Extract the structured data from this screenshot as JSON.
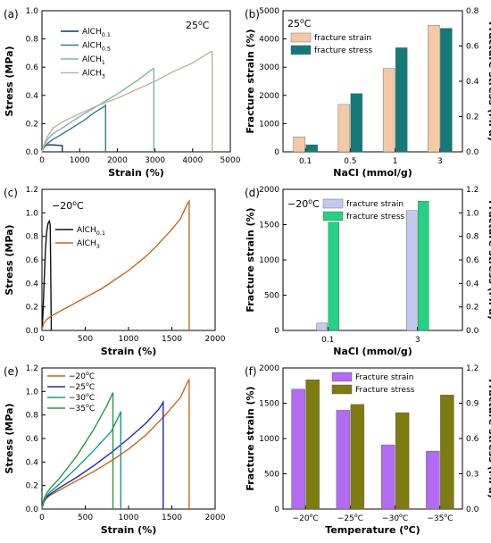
{
  "chart_data": [
    {
      "id": "a",
      "type": "line",
      "panel_label": "(a)",
      "annotation": "25°C",
      "xlabel": "Strain (%)",
      "ylabel": "Stress (MPa)",
      "xlim": [
        0,
        5000
      ],
      "ylim": [
        0,
        1.0
      ],
      "xticks": [
        "0",
        "1000",
        "2000",
        "3000",
        "4000",
        "5000"
      ],
      "yticks": [
        "0.0",
        "0.2",
        "0.4",
        "0.6",
        "0.8",
        "1.0"
      ],
      "legend_position": "top-left",
      "series": [
        {
          "name": "AlCH",
          "sub": "0.1",
          "color": "#16365c",
          "points": [
            [
              0,
              0
            ],
            [
              30,
              0.025
            ],
            [
              100,
              0.045
            ],
            [
              200,
              0.05
            ],
            [
              350,
              0.048
            ],
            [
              500,
              0.045
            ],
            [
              540,
              0.044
            ],
            [
              540,
              0
            ]
          ]
        },
        {
          "name": "AlCH",
          "sub": "0.5",
          "color": "#2e7d8f",
          "points": [
            [
              0,
              0
            ],
            [
              50,
              0.03
            ],
            [
              150,
              0.06
            ],
            [
              300,
              0.09
            ],
            [
              500,
              0.12
            ],
            [
              800,
              0.17
            ],
            [
              1100,
              0.22
            ],
            [
              1400,
              0.28
            ],
            [
              1650,
              0.32
            ],
            [
              1690,
              0.33
            ],
            [
              1690,
              0
            ]
          ]
        },
        {
          "name": "AlCH",
          "sub": "1",
          "color": "#7fb9a0",
          "points": [
            [
              0,
              0
            ],
            [
              50,
              0.04
            ],
            [
              150,
              0.09
            ],
            [
              300,
              0.13
            ],
            [
              600,
              0.18
            ],
            [
              1000,
              0.25
            ],
            [
              1500,
              0.33
            ],
            [
              2000,
              0.41
            ],
            [
              2500,
              0.5
            ],
            [
              2950,
              0.59
            ],
            [
              2970,
              0.59
            ],
            [
              2970,
              0
            ]
          ]
        },
        {
          "name": "AlCH",
          "sub": "3",
          "color": "#c9b097",
          "points": [
            [
              0,
              0
            ],
            [
              50,
              0.05
            ],
            [
              150,
              0.11
            ],
            [
              300,
              0.17
            ],
            [
              600,
              0.22
            ],
            [
              1000,
              0.27
            ],
            [
              1500,
              0.33
            ],
            [
              2000,
              0.38
            ],
            [
              2500,
              0.44
            ],
            [
              3000,
              0.5
            ],
            [
              3500,
              0.57
            ],
            [
              4000,
              0.63
            ],
            [
              4480,
              0.71
            ],
            [
              4520,
              0.71
            ],
            [
              4520,
              0
            ]
          ]
        }
      ]
    },
    {
      "id": "b",
      "type": "bar",
      "panel_label": "(b)",
      "annotation": "25°C",
      "xlabel": "NaCl (mmol/g)",
      "ylabel": "Fracture strain (%)",
      "ylabel_right": "Fracture stress (MPa)",
      "categories": [
        "0.1",
        "0.5",
        "1",
        "3"
      ],
      "ylim": [
        0,
        5000
      ],
      "ylim_right": [
        0,
        0.8
      ],
      "yticks": [
        "0",
        "1000",
        "2000",
        "3000",
        "4000",
        "5000"
      ],
      "yticks_right": [
        "0.0",
        "0.2",
        "0.4",
        "0.6",
        "0.8"
      ],
      "legend_position": "top-left",
      "series": [
        {
          "name": "fracture strain",
          "axis": "left",
          "color": "#f5c9a6",
          "values": [
            530,
            1680,
            2950,
            4480
          ]
        },
        {
          "name": "fracture stress",
          "axis": "right",
          "color": "#127a77",
          "values": [
            0.04,
            0.33,
            0.59,
            0.7
          ]
        }
      ]
    },
    {
      "id": "c",
      "type": "line",
      "panel_label": "(c)",
      "annotation": "−20°C",
      "xlabel": "Strain (%)",
      "ylabel": "Stress (MPa)",
      "xlim": [
        0,
        2000
      ],
      "ylim": [
        0,
        1.2
      ],
      "xticks": [
        "0",
        "500",
        "1000",
        "1500",
        "2000"
      ],
      "yticks": [
        "0.0",
        "0.2",
        "0.4",
        "0.6",
        "0.8",
        "1.0",
        "1.2"
      ],
      "legend_position": "top-left",
      "series": [
        {
          "name": "AlCH",
          "sub": "0.1",
          "color": "#111111",
          "points": [
            [
              0,
              0
            ],
            [
              10,
              0.12
            ],
            [
              20,
              0.3
            ],
            [
              30,
              0.5
            ],
            [
              40,
              0.68
            ],
            [
              55,
              0.84
            ],
            [
              70,
              0.91
            ],
            [
              85,
              0.93
            ],
            [
              95,
              0.9
            ],
            [
              100,
              0.6
            ],
            [
              105,
              0.2
            ],
            [
              108,
              0
            ]
          ]
        },
        {
          "name": "AlCH",
          "sub": "3",
          "color": "#c46a1e",
          "points": [
            [
              0,
              0
            ],
            [
              20,
              0.06
            ],
            [
              50,
              0.09
            ],
            [
              100,
              0.12
            ],
            [
              200,
              0.16
            ],
            [
              300,
              0.2
            ],
            [
              400,
              0.24
            ],
            [
              500,
              0.28
            ],
            [
              600,
              0.32
            ],
            [
              700,
              0.36
            ],
            [
              800,
              0.41
            ],
            [
              900,
              0.46
            ],
            [
              1000,
              0.51
            ],
            [
              1100,
              0.57
            ],
            [
              1200,
              0.63
            ],
            [
              1300,
              0.7
            ],
            [
              1400,
              0.78
            ],
            [
              1500,
              0.86
            ],
            [
              1600,
              0.95
            ],
            [
              1680,
              1.08
            ],
            [
              1700,
              1.1
            ],
            [
              1700,
              0
            ]
          ]
        }
      ]
    },
    {
      "id": "d",
      "type": "bar",
      "panel_label": "(d)",
      "annotation": "−20°C",
      "xlabel": "NaCl (mmol/g)",
      "ylabel": "Fracture strain (%)",
      "ylabel_right": "Fracture stress (MPa)",
      "categories": [
        "0.1",
        "3"
      ],
      "ylim": [
        0,
        2000
      ],
      "ylim_right": [
        0,
        1.2
      ],
      "yticks": [
        "0",
        "500",
        "1000",
        "1500",
        "2000"
      ],
      "yticks_right": [
        "0.0",
        "0.2",
        "0.4",
        "0.6",
        "0.8",
        "1.0",
        "1.2"
      ],
      "legend_position": "top-left",
      "series": [
        {
          "name": "fracture strain",
          "axis": "left",
          "color": "#c5c8ef",
          "values": [
            105,
            1700
          ]
        },
        {
          "name": "fracture stress",
          "axis": "right",
          "color": "#23d283",
          "values": [
            0.92,
            1.1
          ]
        }
      ]
    },
    {
      "id": "e",
      "type": "line",
      "panel_label": "(e)",
      "annotation": "",
      "xlabel": "Strain (%)",
      "ylabel": "Stress (MPa)",
      "xlim": [
        0,
        2000
      ],
      "ylim": [
        0,
        1.2
      ],
      "xticks": [
        "0",
        "500",
        "1000",
        "1500",
        "2000"
      ],
      "yticks": [
        "0.0",
        "0.2",
        "0.4",
        "0.6",
        "0.8",
        "1.0",
        "1.2"
      ],
      "legend_position": "top-left",
      "series": [
        {
          "name": "−20°C",
          "color": "#c46a1e",
          "points": [
            [
              0,
              0
            ],
            [
              20,
              0.06
            ],
            [
              50,
              0.09
            ],
            [
              100,
              0.12
            ],
            [
              200,
              0.16
            ],
            [
              400,
              0.24
            ],
            [
              600,
              0.32
            ],
            [
              800,
              0.41
            ],
            [
              1000,
              0.51
            ],
            [
              1200,
              0.63
            ],
            [
              1400,
              0.78
            ],
            [
              1600,
              0.95
            ],
            [
              1680,
              1.08
            ],
            [
              1700,
              1.1
            ],
            [
              1700,
              0
            ]
          ]
        },
        {
          "name": "−25°C",
          "color": "#1f28b5",
          "points": [
            [
              0,
              0
            ],
            [
              20,
              0.06
            ],
            [
              50,
              0.1
            ],
            [
              100,
              0.13
            ],
            [
              200,
              0.18
            ],
            [
              400,
              0.27
            ],
            [
              600,
              0.37
            ],
            [
              800,
              0.48
            ],
            [
              1000,
              0.6
            ],
            [
              1200,
              0.73
            ],
            [
              1350,
              0.85
            ],
            [
              1400,
              0.91
            ],
            [
              1400,
              0
            ]
          ]
        },
        {
          "name": "−30°C",
          "color": "#149a8a",
          "points": [
            [
              0,
              0
            ],
            [
              20,
              0.07
            ],
            [
              50,
              0.11
            ],
            [
              100,
              0.15
            ],
            [
              200,
              0.21
            ],
            [
              400,
              0.35
            ],
            [
              600,
              0.5
            ],
            [
              800,
              0.66
            ],
            [
              880,
              0.78
            ],
            [
              910,
              0.83
            ],
            [
              910,
              0
            ]
          ]
        },
        {
          "name": "−35°C",
          "color": "#2e9a3a",
          "points": [
            [
              0,
              0
            ],
            [
              20,
              0.08
            ],
            [
              50,
              0.13
            ],
            [
              100,
              0.18
            ],
            [
              200,
              0.26
            ],
            [
              400,
              0.45
            ],
            [
              600,
              0.68
            ],
            [
              750,
              0.88
            ],
            [
              800,
              0.96
            ],
            [
              820,
              0.99
            ],
            [
              820,
              0
            ]
          ]
        }
      ]
    },
    {
      "id": "f",
      "type": "bar",
      "panel_label": "(f)",
      "annotation": "",
      "xlabel": "Temperature (°C)",
      "ylabel": "Fracture strain (%)",
      "ylabel_right": "Fracture stress (MPa)",
      "categories": [
        "−20°C",
        "−25°C",
        "−30°C",
        "−35°C"
      ],
      "ylim": [
        0,
        2000
      ],
      "ylim_right": [
        0,
        1.2
      ],
      "yticks": [
        "0",
        "500",
        "1000",
        "1500",
        "2000"
      ],
      "yticks_right": [
        "0.0",
        "0.3",
        "0.6",
        "0.9",
        "1.2"
      ],
      "legend_position": "top-center",
      "series": [
        {
          "name": "Fracture strain",
          "axis": "left",
          "color": "#b46af2",
          "values": [
            1700,
            1400,
            910,
            820
          ]
        },
        {
          "name": "Fracture stress",
          "axis": "right",
          "color": "#7c7c10",
          "values": [
            1.1,
            0.89,
            0.82,
            0.97
          ]
        }
      ]
    }
  ]
}
